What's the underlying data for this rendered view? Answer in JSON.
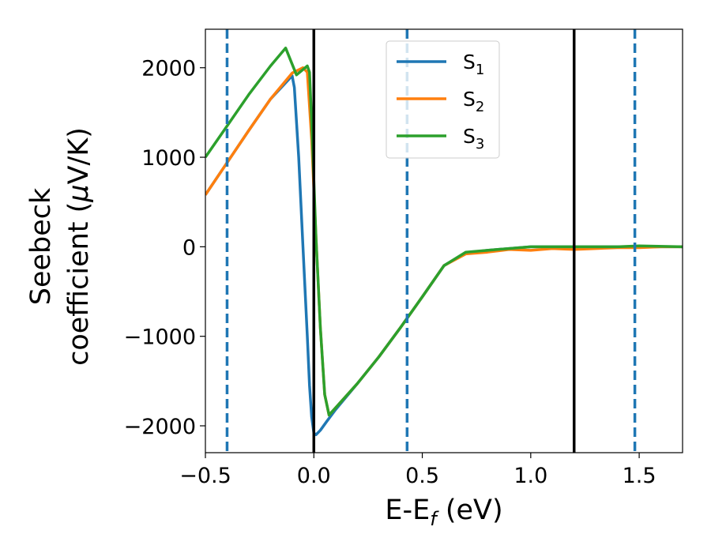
{
  "chart_data": {
    "type": "line",
    "xlabel": "E-E",
    "xlabel_sub": "f",
    "xlabel_unit": " (eV)",
    "ylabel_line1": "Seebeck",
    "ylabel_line2": "coefficient  (",
    "ylabel_mu": "μ",
    "ylabel_unit": "V/K)",
    "xlim": [
      -0.5,
      1.7
    ],
    "ylim": [
      -2300,
      2430
    ],
    "xticks": [
      -0.5,
      0.0,
      0.5,
      1.0,
      1.5
    ],
    "xtick_labels": [
      "−0.5",
      "0.0",
      "0.5",
      "1.0",
      "1.5"
    ],
    "yticks": [
      2000,
      1000,
      0,
      -1000,
      -2000
    ],
    "ytick_labels": [
      "2000",
      "1000",
      "0",
      "−1000",
      "−2000"
    ],
    "vlines_solid": [
      0.0,
      1.2
    ],
    "vlines_dashed": [
      -0.4,
      0.43,
      1.48
    ],
    "legend_position": "upper-center",
    "series": [
      {
        "name": "S",
        "sub": "1",
        "color": "#1f77b4",
        "x": [
          -0.5,
          -0.4,
          -0.3,
          -0.2,
          -0.1,
          -0.09,
          -0.07,
          -0.05,
          -0.03,
          -0.02,
          -0.01,
          0.0,
          0.01,
          0.03,
          0.06,
          0.1,
          0.2,
          0.3,
          0.4,
          0.5,
          0.6,
          0.7,
          0.8,
          0.9,
          1.0,
          1.2,
          1.4,
          1.7
        ],
        "y": [
          580,
          940,
          1300,
          1650,
          1910,
          1780,
          1000,
          0,
          -1000,
          -1550,
          -1900,
          -2080,
          -2100,
          -2050,
          -1950,
          -1820,
          -1530,
          -1230,
          -900,
          -560,
          -210,
          -70,
          -40,
          -20,
          0,
          0,
          0,
          0
        ]
      },
      {
        "name": "S",
        "sub": "2",
        "color": "#ff7f0e",
        "x": [
          -0.5,
          -0.4,
          -0.3,
          -0.2,
          -0.1,
          -0.05,
          -0.03,
          -0.01,
          0.01,
          0.03,
          0.05,
          0.07,
          0.1,
          0.2,
          0.3,
          0.4,
          0.5,
          0.6,
          0.7,
          0.8,
          0.9,
          1.0,
          1.1,
          1.2,
          1.3,
          1.4,
          1.5,
          1.6,
          1.7
        ],
        "y": [
          580,
          940,
          1300,
          1650,
          1940,
          2000,
          1950,
          1200,
          100,
          -900,
          -1650,
          -1880,
          -1800,
          -1530,
          -1230,
          -900,
          -560,
          -210,
          -80,
          -60,
          -30,
          -40,
          -20,
          -30,
          -20,
          -10,
          -10,
          0,
          0
        ]
      },
      {
        "name": "S",
        "sub": "3",
        "color": "#2ca02c",
        "x": [
          -0.5,
          -0.4,
          -0.3,
          -0.2,
          -0.13,
          -0.1,
          -0.08,
          -0.06,
          -0.03,
          -0.02,
          -0.01,
          0.01,
          0.03,
          0.05,
          0.07,
          0.1,
          0.2,
          0.3,
          0.4,
          0.5,
          0.6,
          0.7,
          0.8,
          0.9,
          1.0,
          1.2,
          1.4,
          1.5,
          1.7
        ],
        "y": [
          1000,
          1350,
          1700,
          2020,
          2220,
          2040,
          1920,
          1960,
          2020,
          1950,
          1400,
          100,
          -900,
          -1650,
          -1880,
          -1800,
          -1530,
          -1230,
          -900,
          -560,
          -210,
          -60,
          -40,
          -20,
          0,
          0,
          0,
          10,
          0
        ]
      }
    ]
  }
}
